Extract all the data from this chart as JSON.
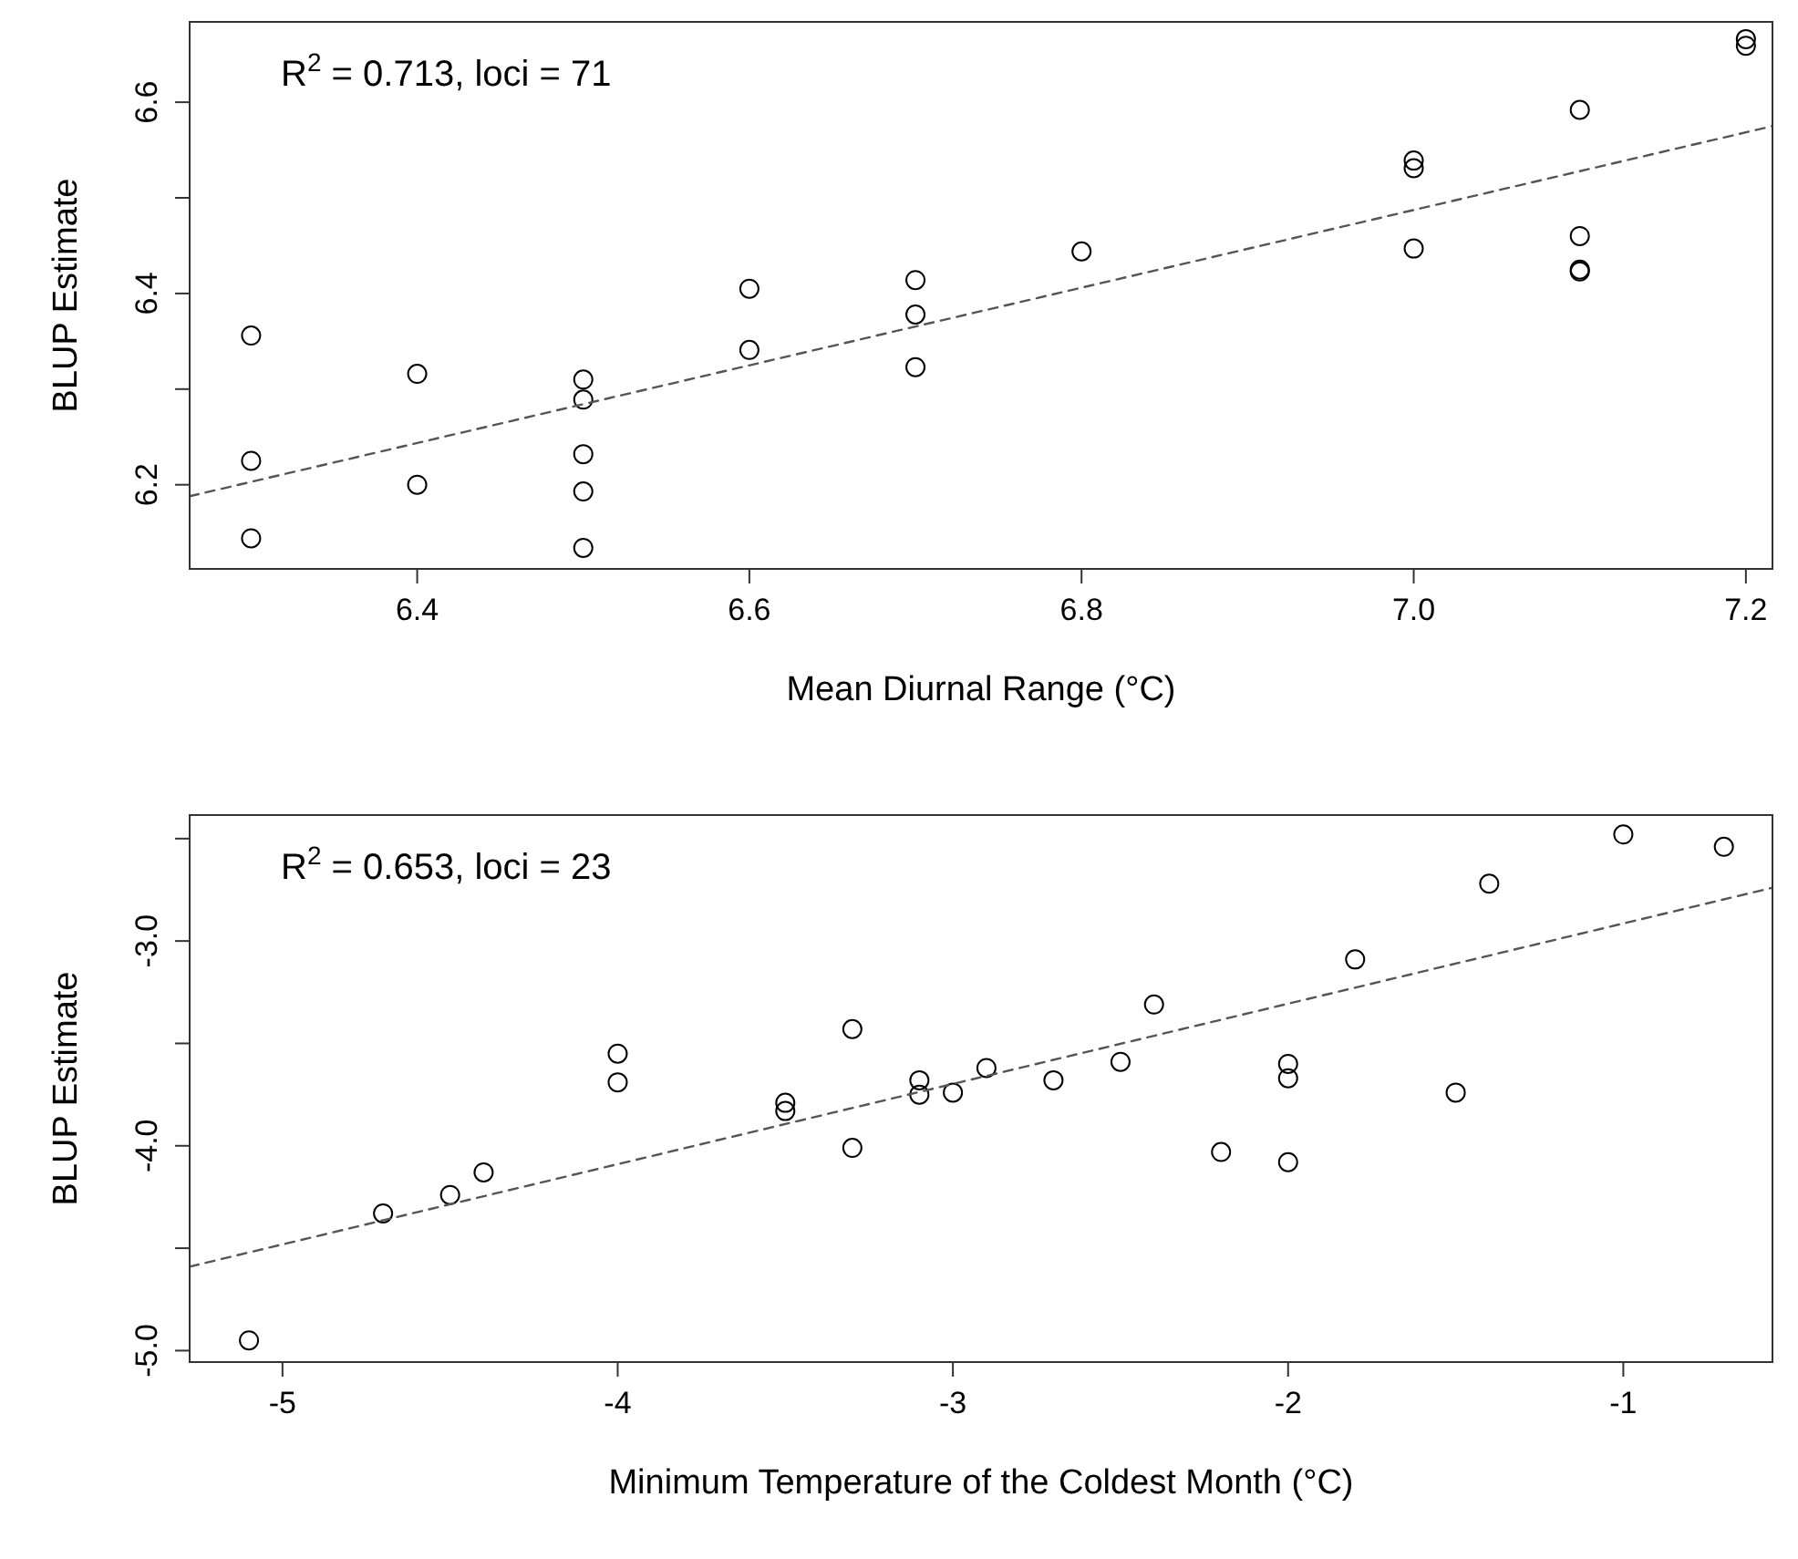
{
  "chart_data": [
    {
      "type": "scatter",
      "xlabel": "Mean Diurnal Range (°C)",
      "ylabel": "BLUP Estimate",
      "annotations": [
        "R$^{2}$ = 0.713, loci = 71"
      ],
      "xlim": [
        6.263,
        7.216
      ],
      "ylim": [
        6.112,
        6.684
      ],
      "xticks": [
        6.4,
        6.6,
        6.8,
        {
          "value": 7.0,
          "label": "7.0"
        },
        7.2
      ],
      "yticks": [
        6.2,
        {
          "value": 6.3,
          "label": null
        },
        6.4,
        {
          "value": 6.5,
          "label": null
        },
        6.6
      ],
      "series": [
        {
          "color": "#000000",
          "marker": "circle",
          "x": [
            6.3,
            6.3,
            6.3,
            6.4,
            6.4,
            6.5,
            6.5,
            6.5,
            6.5,
            6.5,
            6.6,
            6.6,
            6.7,
            6.7,
            6.7,
            6.8,
            7.0,
            7.0,
            7.0,
            7.1,
            7.1,
            7.1,
            7.1,
            7.2,
            7.2
          ],
          "values": [
            6.356,
            6.225,
            6.144,
            6.316,
            6.2,
            6.31,
            6.289,
            6.232,
            6.193,
            6.134,
            6.405,
            6.341,
            6.414,
            6.378,
            6.323,
            6.444,
            6.539,
            6.531,
            6.447,
            6.592,
            6.46,
            6.425,
            6.423,
            6.666,
            6.659
          ]
        },
        {
          "type": "line",
          "color": "#555555",
          "line_style": "dashed",
          "marker": "none",
          "x": [
            6.263,
            7.216
          ],
          "values": [
            6.188,
            6.575
          ]
        }
      ]
    },
    {
      "type": "scatter",
      "xlabel": "Minimum Temperature of the Coldest Month (°C)",
      "ylabel": "BLUP Estimate",
      "annotations": [
        "R$^{2}$ = 0.653, loci = 23"
      ],
      "xlim": [
        -5.277,
        -0.555
      ],
      "ylim": [
        -5.056,
        -2.385
      ],
      "xticks": [
        -5,
        -4,
        -3,
        -2,
        -1
      ],
      "yticks": [
        {
          "value": -5,
          "label": "-5.0"
        },
        {
          "value": -4.5,
          "label": null
        },
        {
          "value": -4,
          "label": "-4.0"
        },
        {
          "value": -3.5,
          "label": null
        },
        {
          "value": -3,
          "label": "-3.0"
        },
        {
          "value": -2.5,
          "label": null
        }
      ],
      "series": [
        {
          "color": "#000000",
          "marker": "circle",
          "x": [
            -5.1,
            -4.7,
            -4.5,
            -4.4,
            -4.0,
            -4.0,
            -3.5,
            -3.5,
            -3.3,
            -3.3,
            -3.1,
            -3.1,
            -3.0,
            -2.9,
            -2.7,
            -2.5,
            -2.4,
            -2.2,
            -2.0,
            -2.0,
            -2.0,
            -1.8,
            -1.5,
            -1.4,
            -1.0,
            -0.7
          ],
          "values": [
            -4.95,
            -4.33,
            -4.24,
            -4.13,
            -3.55,
            -3.69,
            -3.79,
            -3.83,
            -3.43,
            -4.01,
            -3.68,
            -3.75,
            -3.74,
            -3.62,
            -3.68,
            -3.59,
            -3.31,
            -4.03,
            -3.6,
            -3.67,
            -4.08,
            -3.09,
            -3.74,
            -2.72,
            -2.48,
            -2.54
          ]
        },
        {
          "type": "line",
          "color": "#555555",
          "line_style": "dashed",
          "marker": "none",
          "x": [
            -5.277,
            -0.555
          ],
          "values": [
            -4.59,
            -2.74
          ]
        }
      ]
    }
  ]
}
